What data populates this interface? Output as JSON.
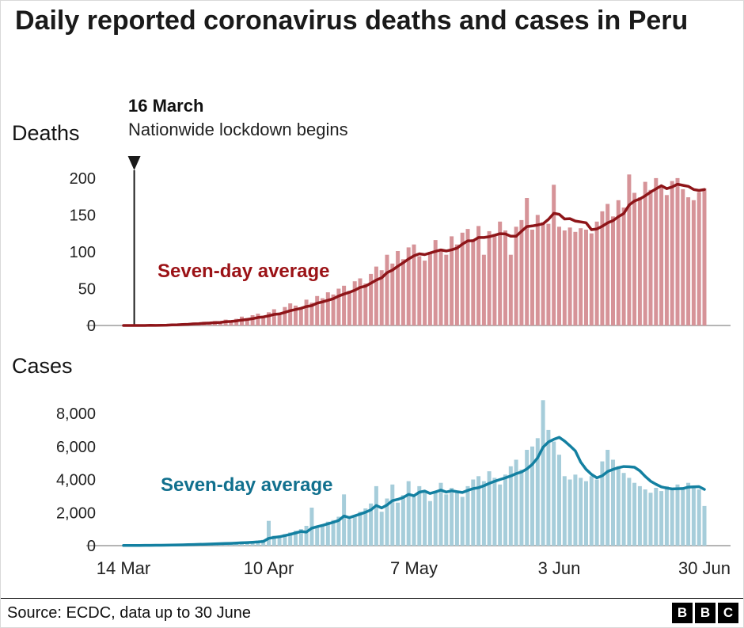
{
  "title": "Daily reported coronavirus deaths and cases in Peru",
  "annotation": {
    "date": "16 March",
    "text": "Nationwide lockdown begins",
    "day_index": 2
  },
  "panels": {
    "deaths": {
      "label": "Deaths",
      "avg_label": "Seven-day average",
      "bar_color": "#d69398",
      "line_color": "#8e1519",
      "label_color": "#9b1216"
    },
    "cases": {
      "label": "Cases",
      "avg_label": "Seven-day average",
      "bar_color": "#a6cdda",
      "line_color": "#1380a1",
      "label_color": "#11708e"
    }
  },
  "footer": {
    "source": "Source: ECDC, data up to 30 June",
    "logo": [
      "B",
      "B",
      "C"
    ]
  },
  "chart_data": [
    {
      "type": "bar",
      "title": "Deaths",
      "subtitle": "Daily reported coronavirus deaths in Peru, with seven-day average line",
      "x_start": "14 Mar",
      "x_end": "30 Jun",
      "xticks": [
        {
          "label": "14 Mar",
          "day_index": 0
        },
        {
          "label": "10 Apr",
          "day_index": 27
        },
        {
          "label": "7 May",
          "day_index": 54
        },
        {
          "label": "3 Jun",
          "day_index": 81
        },
        {
          "label": "30 Jun",
          "day_index": 108
        }
      ],
      "yticks": [
        0,
        50,
        100,
        150,
        200
      ],
      "ylim": [
        0,
        230
      ],
      "values": [
        0,
        0,
        0,
        0,
        0,
        1,
        0,
        1,
        1,
        2,
        2,
        3,
        2,
        4,
        3,
        5,
        4,
        6,
        5,
        8,
        7,
        9,
        12,
        10,
        14,
        16,
        13,
        18,
        22,
        17,
        25,
        30,
        27,
        24,
        35,
        31,
        40,
        37,
        45,
        42,
        50,
        54,
        47,
        60,
        64,
        57,
        70,
        80,
        75,
        96,
        84,
        101,
        90,
        106,
        110,
        94,
        88,
        100,
        116,
        104,
        96,
        121,
        110,
        126,
        131,
        117,
        135,
        96,
        128,
        124,
        141,
        129,
        96,
        134,
        143,
        173,
        130,
        150,
        140,
        138,
        191,
        134,
        129,
        133,
        127,
        132,
        130,
        125,
        141,
        155,
        165,
        148,
        170,
        160,
        205,
        180,
        174,
        195,
        184,
        200,
        190,
        177,
        196,
        200,
        185,
        174,
        170,
        181,
        186
      ],
      "average_series": "Seven-day average (trailing 7-day mean of values)",
      "legend_position": "inline-label",
      "grid": false
    },
    {
      "type": "bar",
      "title": "Cases",
      "subtitle": "Daily reported coronavirus cases in Peru, with seven-day average line",
      "x_start": "14 Mar",
      "x_end": "30 Jun",
      "xticks": [
        {
          "label": "14 Mar",
          "day_index": 0
        },
        {
          "label": "10 Apr",
          "day_index": 27
        },
        {
          "label": "7 May",
          "day_index": 54
        },
        {
          "label": "3 Jun",
          "day_index": 81
        },
        {
          "label": "30 Jun",
          "day_index": 108
        }
      ],
      "yticks": [
        0,
        2000,
        4000,
        6000,
        8000
      ],
      "ylim": [
        0,
        9200
      ],
      "values": [
        10,
        14,
        18,
        24,
        28,
        26,
        34,
        38,
        48,
        58,
        68,
        78,
        88,
        98,
        108,
        118,
        128,
        140,
        150,
        160,
        180,
        200,
        250,
        220,
        280,
        300,
        350,
        1500,
        600,
        520,
        700,
        800,
        900,
        1000,
        1200,
        2300,
        1100,
        1300,
        1450,
        1550,
        1750,
        3100,
        1600,
        1850,
        2050,
        2250,
        2550,
        3600,
        2050,
        2850,
        3700,
        2600,
        3050,
        3900,
        2950,
        3600,
        3300,
        2700,
        3250,
        3800,
        3100,
        3500,
        3200,
        2950,
        3600,
        4000,
        4200,
        3900,
        4500,
        4100,
        3700,
        4300,
        4800,
        5200,
        4600,
        5800,
        6000,
        6500,
        8800,
        7000,
        6300,
        5500,
        4200,
        4000,
        4300,
        4100,
        3900,
        4200,
        4000,
        5100,
        5800,
        5200,
        4800,
        4400,
        4100,
        3800,
        3600,
        3400,
        3200,
        3500,
        3300,
        3600,
        3400,
        3700,
        3500,
        3800,
        3600,
        3400,
        2400
      ],
      "average_series": "Seven-day average (trailing 7-day mean of values)",
      "legend_position": "inline-label",
      "grid": false
    }
  ]
}
